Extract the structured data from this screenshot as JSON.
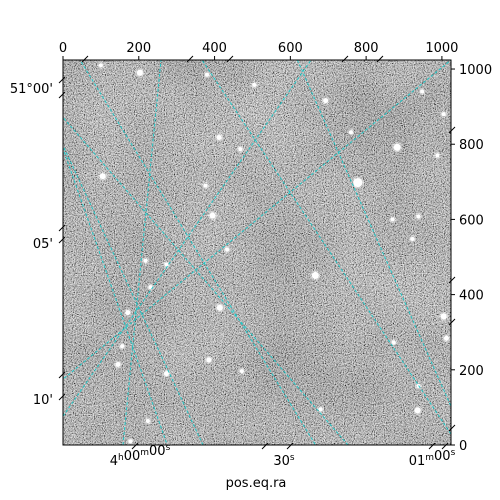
{
  "chart_data": {
    "type": "image",
    "title": "",
    "xlabel": "pos.eq.ra",
    "ylabel": "",
    "pixel_axes": {
      "x_top": {
        "range": [
          0,
          1024
        ],
        "ticks": [
          0,
          200,
          400,
          600,
          800,
          1000
        ],
        "tick_labels": [
          "0",
          "200",
          "400",
          "600",
          "800",
          "1000"
        ]
      },
      "y_right": {
        "range": [
          0,
          1024
        ],
        "ticks": [
          0,
          200,
          400,
          600,
          800,
          1000
        ],
        "tick_labels": [
          "0",
          "200",
          "400",
          "600",
          "800",
          "1000"
        ]
      }
    },
    "world_axes": {
      "ra": {
        "label": "pos.eq.ra",
        "tick_labels": [
          {
            "h": "4",
            "m": "00",
            "s": "00",
            "text": "4h00m00s"
          },
          {
            "s": "30",
            "text": "30s"
          },
          {
            "m": "01",
            "s": "00",
            "text": "01m00s"
          }
        ]
      },
      "dec": {
        "tick_labels": [
          "51°00'",
          "05'",
          "10'"
        ]
      }
    },
    "grid": true,
    "grid_color": "#20c6c6",
    "colormap": "gray",
    "stars": [
      {
        "x": 100,
        "y": 1010,
        "r": 2
      },
      {
        "x": 203,
        "y": 990,
        "r": 3
      },
      {
        "x": 380,
        "y": 985,
        "r": 2
      },
      {
        "x": 505,
        "y": 958,
        "r": 2
      },
      {
        "x": 693,
        "y": 916,
        "r": 2.5
      },
      {
        "x": 948,
        "y": 940,
        "r": 2
      },
      {
        "x": 1005,
        "y": 880,
        "r": 2
      },
      {
        "x": 412,
        "y": 818,
        "r": 2.5
      },
      {
        "x": 468,
        "y": 787,
        "r": 2
      },
      {
        "x": 760,
        "y": 832,
        "r": 2
      },
      {
        "x": 882,
        "y": 792,
        "r": 3.5
      },
      {
        "x": 988,
        "y": 770,
        "r": 2
      },
      {
        "x": 105,
        "y": 715,
        "r": 3
      },
      {
        "x": 376,
        "y": 690,
        "r": 2
      },
      {
        "x": 778,
        "y": 698,
        "r": 4.5
      },
      {
        "x": 395,
        "y": 610,
        "r": 3
      },
      {
        "x": 870,
        "y": 600,
        "r": 2
      },
      {
        "x": 938,
        "y": 608,
        "r": 2
      },
      {
        "x": 433,
        "y": 520,
        "r": 2
      },
      {
        "x": 922,
        "y": 548,
        "r": 2
      },
      {
        "x": 218,
        "y": 490,
        "r": 2
      },
      {
        "x": 273,
        "y": 480,
        "r": 2
      },
      {
        "x": 666,
        "y": 451,
        "r": 3.5
      },
      {
        "x": 231,
        "y": 420,
        "r": 2
      },
      {
        "x": 414,
        "y": 365,
        "r": 3
      },
      {
        "x": 1005,
        "y": 342,
        "r": 3
      },
      {
        "x": 1012,
        "y": 284,
        "r": 2.5
      },
      {
        "x": 171,
        "y": 352,
        "r": 2.5
      },
      {
        "x": 156,
        "y": 263,
        "r": 2
      },
      {
        "x": 385,
        "y": 226,
        "r": 2.5
      },
      {
        "x": 472,
        "y": 196,
        "r": 2
      },
      {
        "x": 145,
        "y": 214,
        "r": 2.5
      },
      {
        "x": 273,
        "y": 190,
        "r": 2.5
      },
      {
        "x": 873,
        "y": 273,
        "r": 2
      },
      {
        "x": 938,
        "y": 157,
        "r": 2
      },
      {
        "x": 936,
        "y": 92,
        "r": 3
      },
      {
        "x": 224,
        "y": 64,
        "r": 2
      },
      {
        "x": 680,
        "y": 95,
        "r": 2
      },
      {
        "x": 178,
        "y": 10,
        "r": 2
      }
    ]
  }
}
